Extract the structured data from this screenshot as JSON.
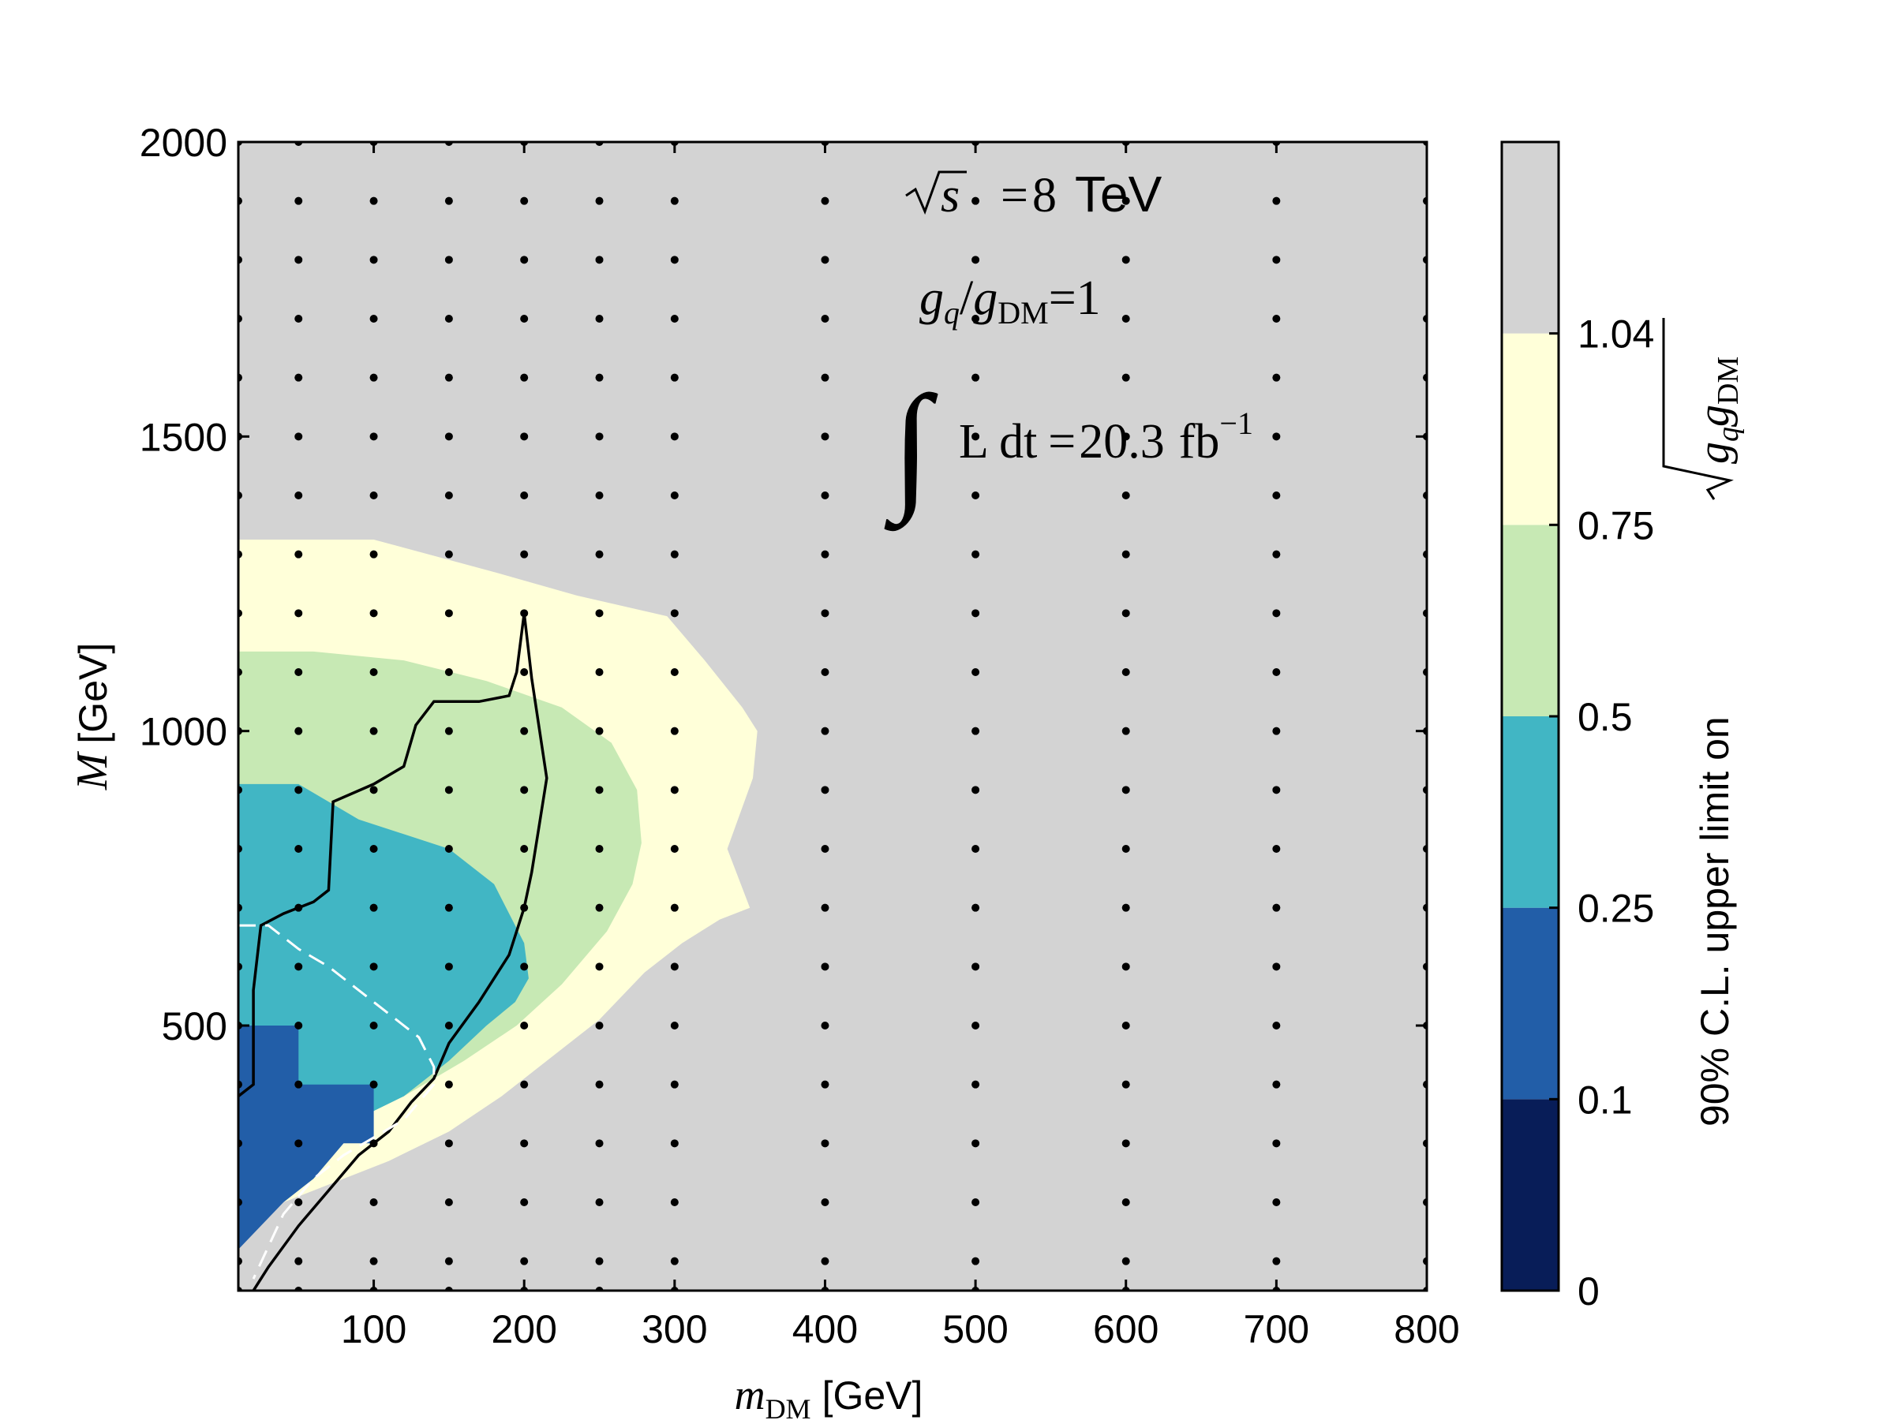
{
  "chart_data": {
    "type": "heatmap",
    "title": "",
    "xlabel": "[GeV]",
    "xlabel_symbol": "m",
    "xlabel_sub": "DM",
    "ylabel": "[GeV]",
    "ylabel_symbol": "M",
    "xlim": [
      10,
      800
    ],
    "ylim": [
      50,
      2000
    ],
    "x_ticks": [
      100,
      200,
      300,
      400,
      500,
      600,
      700,
      800
    ],
    "y_ticks": [
      500,
      1000,
      1500,
      2000
    ],
    "x_tick_labels": [
      "100",
      "200",
      "300",
      "400",
      "500",
      "600",
      "700",
      "800"
    ],
    "y_tick_labels": [
      "500",
      "1000",
      "1500",
      "2000"
    ],
    "annotations": {
      "energy_symbol": "s",
      "energy_value": "8",
      "energy_unit": "TeV",
      "coupling_num": "g",
      "coupling_num_sub": "q",
      "coupling_den": "g",
      "coupling_den_sub": "DM",
      "coupling_value": "1",
      "lumi_text": "L dt",
      "lumi_value": "20.3",
      "lumi_unit": "fb",
      "lumi_exp": "−1"
    },
    "colorbar": {
      "label_prefix": "90% C.L. upper limit on",
      "label_sym1": "g",
      "label_sub1": "q",
      "label_sym2": "g",
      "label_sub2": "DM",
      "levels": [
        0,
        0.1,
        0.25,
        0.5,
        0.75,
        1.04
      ],
      "tick_labels": [
        "0",
        "0.1",
        "0.25",
        "0.5",
        "0.75",
        "1.04"
      ],
      "colors": [
        "#081d58",
        "#225ea8",
        "#41b6c4",
        "#c7e9b4",
        "#ffffd9",
        "#d3d3d3"
      ]
    },
    "grid_points": {
      "x": [
        10,
        50,
        100,
        150,
        200,
        250,
        300,
        400,
        500,
        600,
        700,
        800
      ],
      "y": [
        50,
        100,
        200,
        300,
        400,
        500,
        600,
        700,
        800,
        900,
        1000,
        1100,
        1200,
        1300,
        1400,
        1500,
        1600,
        1700,
        1800,
        1900,
        2000
      ]
    },
    "regions": [
      {
        "level": "0.75",
        "color": "#ffffd9",
        "boundary": [
          [
            10,
            1325
          ],
          [
            100,
            1325
          ],
          [
            180,
            1270
          ],
          [
            235,
            1230
          ],
          [
            295,
            1195
          ],
          [
            320,
            1120
          ],
          [
            345,
            1040
          ],
          [
            355,
            1000
          ],
          [
            352,
            920
          ],
          [
            335,
            800
          ],
          [
            350,
            700
          ],
          [
            330,
            680
          ],
          [
            305,
            640
          ],
          [
            280,
            590
          ],
          [
            250,
            510
          ],
          [
            215,
            440
          ],
          [
            185,
            380
          ],
          [
            150,
            320
          ],
          [
            110,
            270
          ],
          [
            70,
            230
          ],
          [
            40,
            200
          ],
          [
            10,
            175
          ]
        ]
      },
      {
        "level": "0.5",
        "color": "#c7e9b4",
        "boundary": [
          [
            10,
            1135
          ],
          [
            60,
            1135
          ],
          [
            120,
            1120
          ],
          [
            175,
            1085
          ],
          [
            225,
            1040
          ],
          [
            258,
            980
          ],
          [
            275,
            900
          ],
          [
            278,
            810
          ],
          [
            272,
            740
          ],
          [
            255,
            660
          ],
          [
            225,
            570
          ],
          [
            195,
            500
          ],
          [
            160,
            440
          ],
          [
            120,
            380
          ],
          [
            80,
            330
          ],
          [
            40,
            290
          ],
          [
            10,
            260
          ]
        ]
      },
      {
        "level": "0.25",
        "color": "#41b6c4",
        "boundary": [
          [
            10,
            910
          ],
          [
            50,
            910
          ],
          [
            90,
            850
          ],
          [
            150,
            800
          ],
          [
            180,
            740
          ],
          [
            200,
            640
          ],
          [
            203,
            580
          ],
          [
            194,
            540
          ],
          [
            175,
            500
          ],
          [
            150,
            440
          ],
          [
            120,
            380
          ],
          [
            80,
            330
          ],
          [
            40,
            270
          ],
          [
            10,
            200
          ]
        ]
      },
      {
        "level": "0.1",
        "color": "#225ea8",
        "boundary": [
          [
            10,
            500
          ],
          [
            50,
            500
          ],
          [
            50,
            400
          ],
          [
            100,
            400
          ],
          [
            100,
            300
          ],
          [
            80,
            300
          ],
          [
            60,
            240
          ],
          [
            40,
            200
          ],
          [
            25,
            160
          ],
          [
            10,
            120
          ]
        ]
      }
    ],
    "series": [
      {
        "name": "solid contour",
        "style": "solid",
        "color": "#000000",
        "points": [
          [
            10,
            380
          ],
          [
            20,
            400
          ],
          [
            20,
            560
          ],
          [
            25,
            670
          ],
          [
            40,
            690
          ],
          [
            60,
            710
          ],
          [
            70,
            730
          ],
          [
            73,
            880
          ],
          [
            100,
            910
          ],
          [
            120,
            940
          ],
          [
            128,
            1010
          ],
          [
            140,
            1050
          ],
          [
            170,
            1050
          ],
          [
            190,
            1060
          ],
          [
            195,
            1100
          ],
          [
            200,
            1200
          ],
          [
            205,
            1090
          ],
          [
            215,
            920
          ],
          [
            210,
            840
          ],
          [
            205,
            760
          ],
          [
            200,
            700
          ],
          [
            190,
            620
          ],
          [
            170,
            540
          ],
          [
            150,
            470
          ],
          [
            140,
            410
          ],
          [
            125,
            370
          ],
          [
            110,
            320
          ],
          [
            90,
            280
          ],
          [
            70,
            220
          ],
          [
            50,
            160
          ],
          [
            30,
            90
          ],
          [
            20,
            50
          ]
        ]
      },
      {
        "name": "dashed contour",
        "style": "dashed",
        "color": "#ffffff",
        "points": [
          [
            10,
            670
          ],
          [
            30,
            670
          ],
          [
            50,
            630
          ],
          [
            70,
            600
          ],
          [
            90,
            560
          ],
          [
            110,
            520
          ],
          [
            130,
            480
          ],
          [
            140,
            430
          ],
          [
            140,
            400
          ],
          [
            120,
            340
          ],
          [
            100,
            310
          ],
          [
            80,
            280
          ],
          [
            60,
            240
          ],
          [
            40,
            180
          ],
          [
            20,
            70
          ]
        ]
      }
    ]
  }
}
